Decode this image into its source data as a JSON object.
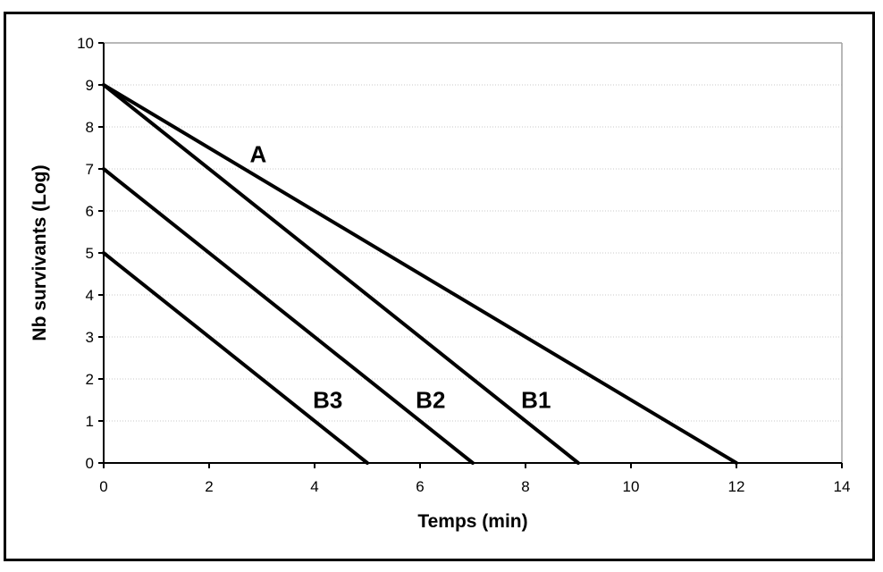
{
  "figure": {
    "background": "#ffffff",
    "border_color": "#000000"
  },
  "chart_data": {
    "type": "line",
    "title": "",
    "xlabel": "Temps (min)",
    "ylabel": "Nb survivants (Log)",
    "xlim": [
      0,
      14
    ],
    "ylim": [
      0,
      10
    ],
    "xticks": [
      0,
      2,
      4,
      6,
      8,
      10,
      12,
      14
    ],
    "yticks": [
      0,
      1,
      2,
      3,
      4,
      5,
      6,
      7,
      8,
      9,
      10
    ],
    "grid": "horizontal-dotted",
    "legend": "none",
    "line_color": "#000000",
    "grid_color": "#c9c9c9",
    "plot_border_color": "#a0a0a0",
    "axis_color": "#000000",
    "series": [
      {
        "name": "A",
        "x": [
          0,
          12
        ],
        "y": [
          9,
          0
        ]
      },
      {
        "name": "B1",
        "x": [
          0,
          9
        ],
        "y": [
          9,
          0
        ]
      },
      {
        "name": "B2",
        "x": [
          0,
          7
        ],
        "y": [
          7,
          0
        ]
      },
      {
        "name": "B3",
        "x": [
          0,
          5
        ],
        "y": [
          5,
          0
        ]
      }
    ],
    "annotations": [
      {
        "text": "A",
        "x": 2.93,
        "y": 7.35
      },
      {
        "text": "B1",
        "x": 8.2,
        "y": 1.5
      },
      {
        "text": "B2",
        "x": 6.2,
        "y": 1.5
      },
      {
        "text": "B3",
        "x": 4.25,
        "y": 1.5
      }
    ]
  }
}
